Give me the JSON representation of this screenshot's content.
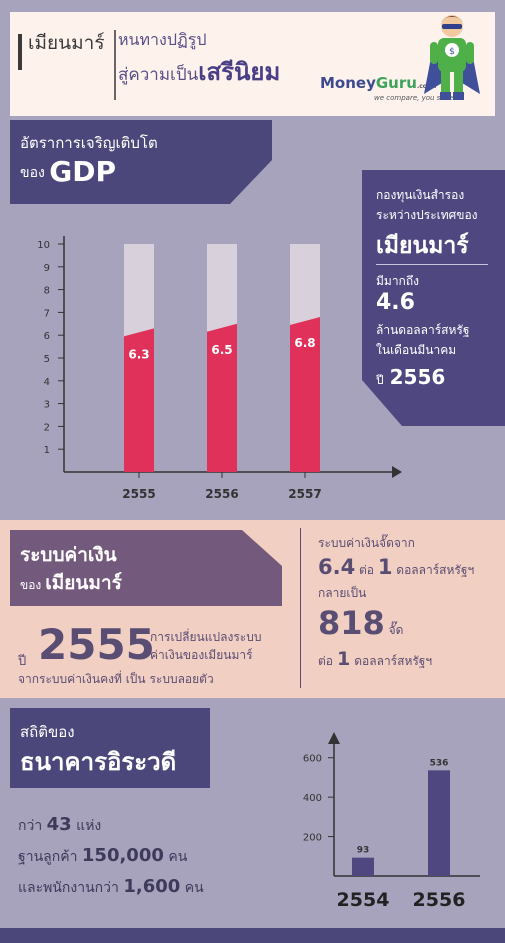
{
  "header": {
    "country": "เมียนมาร์",
    "line1": "หนทางปฏิรูป",
    "line2_prefix": "สู่ความเป็น",
    "line2_emph": "เสรีนิยม",
    "brand_money": "Money",
    "brand_guru": "Guru",
    "brand_domain": ".co.th",
    "brand_tagline": "we compare, you save"
  },
  "gdp": {
    "title_line1": "อัตราการเจริญเติบโต",
    "title_prefix": "ของ",
    "title_emph": "GDP"
  },
  "chart_data": [
    {
      "type": "bar",
      "categories": [
        "2555",
        "2556",
        "2557"
      ],
      "values": [
        6.3,
        6.5,
        6.8
      ],
      "ylim": [
        0,
        10
      ],
      "yticks": [
        1,
        2,
        3,
        4,
        5,
        6,
        7,
        8,
        9,
        10
      ],
      "data_labels": [
        "6.3",
        "6.5",
        "6.8"
      ],
      "colors": {
        "bar": "#e0315b",
        "track": "#d8d0db",
        "axis": "#333333"
      }
    },
    {
      "type": "bar",
      "categories": [
        "2554",
        "2556"
      ],
      "values": [
        93,
        536
      ],
      "ylim": [
        0,
        700
      ],
      "yticks": [
        200,
        400,
        600
      ],
      "data_labels": [
        "93",
        "536"
      ],
      "colors": {
        "bar": "#4f4880",
        "axis": "#333333"
      }
    }
  ],
  "reserve": {
    "line1": "กองทุนเงินสำรอง",
    "line2": "ระหว่างประเทศของ",
    "country": "เมียนมาร์",
    "line4": "มีมากถึง",
    "value": "4.6",
    "unit": "ล้านดอลลาร์สหรัฐ",
    "month": "ในเดือนมีนาคม",
    "year_prefix": "ปี",
    "year": "2556"
  },
  "currency": {
    "title": "ระบบค่าเงิน",
    "sub_prefix": "ของ",
    "sub_emph": "เมียนมาร์",
    "year_prefix": "ปี",
    "year": "2555",
    "desc1": "การเปลี่ยนแปลงระบบ",
    "desc2": "ค่าเงินของเมียนมาร์",
    "desc3": "จากระบบค่าเงินคงที่ เป็น ระบบลอยตัว",
    "r1": "ระบบค่าเงินจั๊ดจาก",
    "r2_num": "6.4",
    "r2_mid": " ต่อ ",
    "r2_num2": "1",
    "r2_unit": " ดอลลาร์สหรัฐฯ",
    "r3": "กลายเป็น",
    "r4_num": "818",
    "r4_unit": " จั๊ด",
    "r5_pre": "ต่อ",
    "r5_num": "1",
    "r5_unit": "ดอลลาร์สหรัฐฯ"
  },
  "bank": {
    "title1": "สถิติของ",
    "title2": "ธนาคารอิระวดี",
    "s1_pre": "กว่า ",
    "s1_num": "43",
    "s1_unit": " แห่ง",
    "s2_pre": "ฐานลูกค้า ",
    "s2_num": "150,000",
    "s2_unit": " คน",
    "s3_pre": "และพนักงานกว่า ",
    "s3_num": "1,600",
    "s3_unit": " คน"
  }
}
